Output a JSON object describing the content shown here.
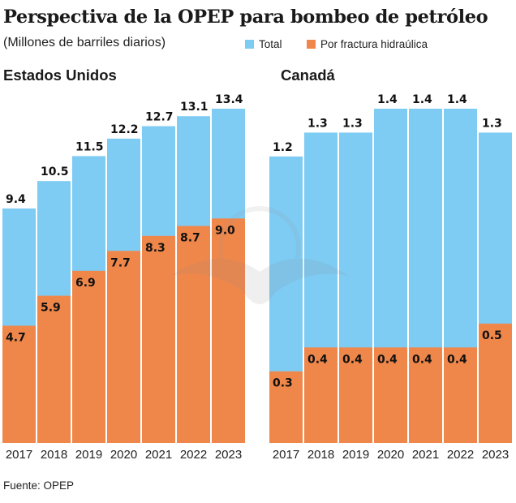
{
  "title": "Perspectiva de la OPEP para bombeo de petróleo",
  "subtitle": "(Millones de barriles diarios)",
  "legend": [
    {
      "label": "Total",
      "color": "#7ECBF3"
    },
    {
      "label": "Por fractura hidraúlica",
      "color": "#F0874A"
    }
  ],
  "source": "Fuente: OPEP",
  "chart_data": [
    {
      "type": "bar",
      "title": "Estados Unidos",
      "categories": [
        "2017",
        "2018",
        "2019",
        "2020",
        "2021",
        "2022",
        "2023"
      ],
      "series": [
        {
          "name": "Total",
          "values": [
            9.4,
            10.5,
            11.5,
            12.2,
            12.7,
            13.1,
            13.4
          ]
        },
        {
          "name": "Por fractura hidraúlica",
          "values": [
            4.7,
            5.9,
            6.9,
            7.7,
            8.3,
            8.7,
            9.0
          ]
        }
      ],
      "ylim": [
        0,
        13.4
      ],
      "grid": false,
      "legend": "top"
    },
    {
      "type": "bar",
      "title": "Canadá",
      "categories": [
        "2017",
        "2018",
        "2019",
        "2020",
        "2021",
        "2022",
        "2023"
      ],
      "series": [
        {
          "name": "Total",
          "values": [
            1.2,
            1.3,
            1.3,
            1.4,
            1.4,
            1.4,
            1.3
          ]
        },
        {
          "name": "Por fractura hidraúlica",
          "values": [
            0.3,
            0.4,
            0.4,
            0.4,
            0.4,
            0.4,
            0.5
          ]
        }
      ],
      "ylim": [
        0,
        1.4
      ],
      "grid": false,
      "legend": "top"
    }
  ]
}
